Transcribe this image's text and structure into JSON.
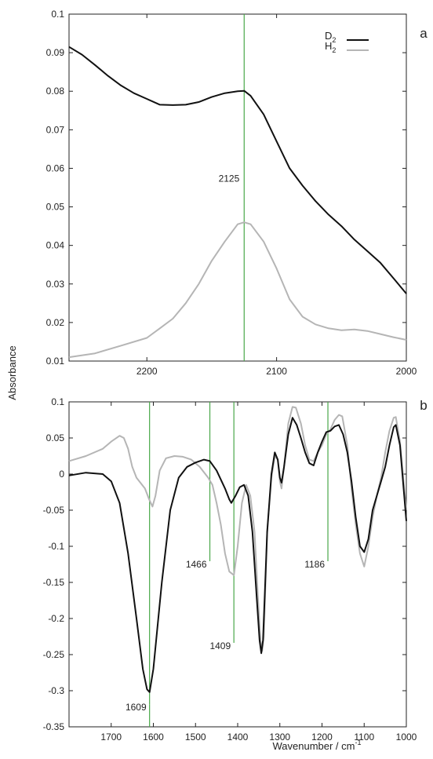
{
  "figure": {
    "ylabel": "Absorbance",
    "xlabel_main": "Wavenumber / cm",
    "xlabel_sup": "-1"
  },
  "chart_data": [
    {
      "panel_label": "a",
      "type": "line",
      "x_reversed": true,
      "xlim": [
        2260,
        2000
      ],
      "ylim": [
        0.01,
        0.1
      ],
      "x_ticks": [
        2200,
        2100,
        2000
      ],
      "y_ticks": [
        0.01,
        0.02,
        0.03,
        0.04,
        0.05,
        0.06,
        0.07,
        0.08,
        0.09,
        0.1
      ],
      "grid": false,
      "legend_position": "top-right",
      "legend": [
        {
          "label": "D",
          "sub": "2",
          "color": "#111111"
        },
        {
          "label": "H",
          "sub": "2",
          "color": "#b5b5b5"
        }
      ],
      "markers": [
        {
          "x": 2125,
          "label": "2125",
          "color": "#4aa84a"
        }
      ],
      "series": [
        {
          "name": "D2",
          "color": "#111111",
          "points": [
            [
              2260,
              0.0915
            ],
            [
              2250,
              0.0895
            ],
            [
              2240,
              0.0868
            ],
            [
              2230,
              0.084
            ],
            [
              2220,
              0.0815
            ],
            [
              2210,
              0.0795
            ],
            [
              2200,
              0.078
            ],
            [
              2190,
              0.0765
            ],
            [
              2180,
              0.0764
            ],
            [
              2170,
              0.0765
            ],
            [
              2160,
              0.0772
            ],
            [
              2150,
              0.0785
            ],
            [
              2140,
              0.0795
            ],
            [
              2130,
              0.08
            ],
            [
              2125,
              0.0801
            ],
            [
              2120,
              0.0788
            ],
            [
              2110,
              0.074
            ],
            [
              2100,
              0.067
            ],
            [
              2090,
              0.06
            ],
            [
              2080,
              0.0555
            ],
            [
              2070,
              0.0515
            ],
            [
              2060,
              0.048
            ],
            [
              2050,
              0.045
            ],
            [
              2040,
              0.0415
            ],
            [
              2030,
              0.0385
            ],
            [
              2020,
              0.0355
            ],
            [
              2010,
              0.0315
            ],
            [
              2000,
              0.0275
            ]
          ]
        },
        {
          "name": "H2",
          "color": "#b5b5b5",
          "points": [
            [
              2260,
              0.011
            ],
            [
              2240,
              0.012
            ],
            [
              2220,
              0.014
            ],
            [
              2200,
              0.016
            ],
            [
              2190,
              0.0185
            ],
            [
              2180,
              0.021
            ],
            [
              2170,
              0.025
            ],
            [
              2160,
              0.03
            ],
            [
              2150,
              0.036
            ],
            [
              2140,
              0.041
            ],
            [
              2130,
              0.0455
            ],
            [
              2125,
              0.046
            ],
            [
              2120,
              0.0455
            ],
            [
              2110,
              0.041
            ],
            [
              2100,
              0.034
            ],
            [
              2090,
              0.026
            ],
            [
              2080,
              0.0215
            ],
            [
              2070,
              0.0195
            ],
            [
              2060,
              0.0185
            ],
            [
              2050,
              0.018
            ],
            [
              2040,
              0.0182
            ],
            [
              2030,
              0.0178
            ],
            [
              2020,
              0.017
            ],
            [
              2010,
              0.0162
            ],
            [
              2000,
              0.0155
            ]
          ]
        }
      ]
    },
    {
      "panel_label": "b",
      "type": "line",
      "x_reversed": true,
      "xlim": [
        1800,
        1000
      ],
      "ylim": [
        -0.35,
        0.1
      ],
      "x_ticks": [
        1700,
        1600,
        1500,
        1400,
        1300,
        1200,
        1100,
        1000
      ],
      "y_ticks": [
        -0.35,
        -0.3,
        -0.25,
        -0.2,
        -0.15,
        -0.1,
        -0.05,
        0,
        0.05,
        0.1
      ],
      "grid": false,
      "markers": [
        {
          "x": 1609,
          "label": "1609",
          "label_y": -0.323,
          "color": "#4aa84a"
        },
        {
          "x": 1466,
          "label": "1466",
          "label_y": -0.125,
          "color": "#4aa84a"
        },
        {
          "x": 1409,
          "label": "1409",
          "label_y": -0.238,
          "color": "#4aa84a"
        },
        {
          "x": 1186,
          "label": "1186",
          "label_y": -0.125,
          "color": "#4aa84a"
        }
      ],
      "series": [
        {
          "name": "D2",
          "color": "#111111",
          "points": [
            [
              1800,
              -0.002
            ],
            [
              1760,
              0.002
            ],
            [
              1720,
              0.0
            ],
            [
              1700,
              -0.01
            ],
            [
              1680,
              -0.04
            ],
            [
              1660,
              -0.11
            ],
            [
              1640,
              -0.2
            ],
            [
              1625,
              -0.27
            ],
            [
              1615,
              -0.298
            ],
            [
              1609,
              -0.302
            ],
            [
              1600,
              -0.27
            ],
            [
              1580,
              -0.15
            ],
            [
              1560,
              -0.05
            ],
            [
              1540,
              -0.005
            ],
            [
              1520,
              0.01
            ],
            [
              1500,
              0.016
            ],
            [
              1480,
              0.02
            ],
            [
              1466,
              0.018
            ],
            [
              1450,
              0.005
            ],
            [
              1430,
              -0.02
            ],
            [
              1420,
              -0.035
            ],
            [
              1415,
              -0.04
            ],
            [
              1405,
              -0.03
            ],
            [
              1395,
              -0.018
            ],
            [
              1385,
              -0.015
            ],
            [
              1375,
              -0.03
            ],
            [
              1365,
              -0.08
            ],
            [
              1355,
              -0.17
            ],
            [
              1348,
              -0.23
            ],
            [
              1344,
              -0.248
            ],
            [
              1340,
              -0.23
            ],
            [
              1330,
              -0.08
            ],
            [
              1320,
              0.0
            ],
            [
              1312,
              0.03
            ],
            [
              1305,
              0.02
            ],
            [
              1300,
              -0.005
            ],
            [
              1296,
              -0.012
            ],
            [
              1290,
              0.01
            ],
            [
              1280,
              0.055
            ],
            [
              1270,
              0.078
            ],
            [
              1260,
              0.068
            ],
            [
              1250,
              0.05
            ],
            [
              1240,
              0.03
            ],
            [
              1230,
              0.015
            ],
            [
              1220,
              0.012
            ],
            [
              1210,
              0.03
            ],
            [
              1200,
              0.045
            ],
            [
              1190,
              0.058
            ],
            [
              1180,
              0.06
            ],
            [
              1170,
              0.066
            ],
            [
              1160,
              0.068
            ],
            [
              1150,
              0.055
            ],
            [
              1140,
              0.03
            ],
            [
              1130,
              -0.01
            ],
            [
              1120,
              -0.06
            ],
            [
              1110,
              -0.1
            ],
            [
              1100,
              -0.108
            ],
            [
              1090,
              -0.09
            ],
            [
              1080,
              -0.05
            ],
            [
              1070,
              -0.03
            ],
            [
              1060,
              -0.01
            ],
            [
              1050,
              0.01
            ],
            [
              1040,
              0.04
            ],
            [
              1030,
              0.065
            ],
            [
              1025,
              0.068
            ],
            [
              1015,
              0.04
            ],
            [
              1005,
              -0.03
            ],
            [
              1000,
              -0.065
            ]
          ]
        },
        {
          "name": "H2",
          "color": "#b5b5b5",
          "points": [
            [
              1800,
              0.018
            ],
            [
              1760,
              0.025
            ],
            [
              1720,
              0.035
            ],
            [
              1700,
              0.045
            ],
            [
              1680,
              0.053
            ],
            [
              1670,
              0.05
            ],
            [
              1660,
              0.035
            ],
            [
              1650,
              0.01
            ],
            [
              1640,
              -0.005
            ],
            [
              1620,
              -0.02
            ],
            [
              1610,
              -0.035
            ],
            [
              1602,
              -0.045
            ],
            [
              1595,
              -0.03
            ],
            [
              1585,
              0.005
            ],
            [
              1570,
              0.022
            ],
            [
              1550,
              0.025
            ],
            [
              1530,
              0.024
            ],
            [
              1510,
              0.02
            ],
            [
              1490,
              0.01
            ],
            [
              1470,
              -0.005
            ],
            [
              1460,
              -0.015
            ],
            [
              1450,
              -0.04
            ],
            [
              1440,
              -0.07
            ],
            [
              1430,
              -0.11
            ],
            [
              1420,
              -0.135
            ],
            [
              1409,
              -0.14
            ],
            [
              1400,
              -0.1
            ],
            [
              1390,
              -0.04
            ],
            [
              1380,
              -0.015
            ],
            [
              1370,
              -0.03
            ],
            [
              1360,
              -0.08
            ],
            [
              1352,
              -0.17
            ],
            [
              1346,
              -0.23
            ],
            [
              1342,
              -0.245
            ],
            [
              1338,
              -0.225
            ],
            [
              1330,
              -0.08
            ],
            [
              1320,
              -0.005
            ],
            [
              1312,
              0.025
            ],
            [
              1305,
              0.02
            ],
            [
              1300,
              -0.01
            ],
            [
              1296,
              -0.02
            ],
            [
              1290,
              0.01
            ],
            [
              1280,
              0.07
            ],
            [
              1270,
              0.093
            ],
            [
              1262,
              0.092
            ],
            [
              1250,
              0.07
            ],
            [
              1240,
              0.04
            ],
            [
              1230,
              0.02
            ],
            [
              1220,
              0.018
            ],
            [
              1210,
              0.03
            ],
            [
              1200,
              0.04
            ],
            [
              1190,
              0.055
            ],
            [
              1180,
              0.062
            ],
            [
              1170,
              0.075
            ],
            [
              1160,
              0.082
            ],
            [
              1152,
              0.08
            ],
            [
              1140,
              0.04
            ],
            [
              1130,
              -0.02
            ],
            [
              1120,
              -0.07
            ],
            [
              1110,
              -0.11
            ],
            [
              1100,
              -0.128
            ],
            [
              1090,
              -0.1
            ],
            [
              1080,
              -0.06
            ],
            [
              1070,
              -0.03
            ],
            [
              1060,
              -0.005
            ],
            [
              1050,
              0.03
            ],
            [
              1040,
              0.06
            ],
            [
              1030,
              0.078
            ],
            [
              1025,
              0.079
            ],
            [
              1015,
              0.045
            ],
            [
              1005,
              -0.02
            ],
            [
              1000,
              -0.05
            ]
          ]
        }
      ]
    }
  ]
}
